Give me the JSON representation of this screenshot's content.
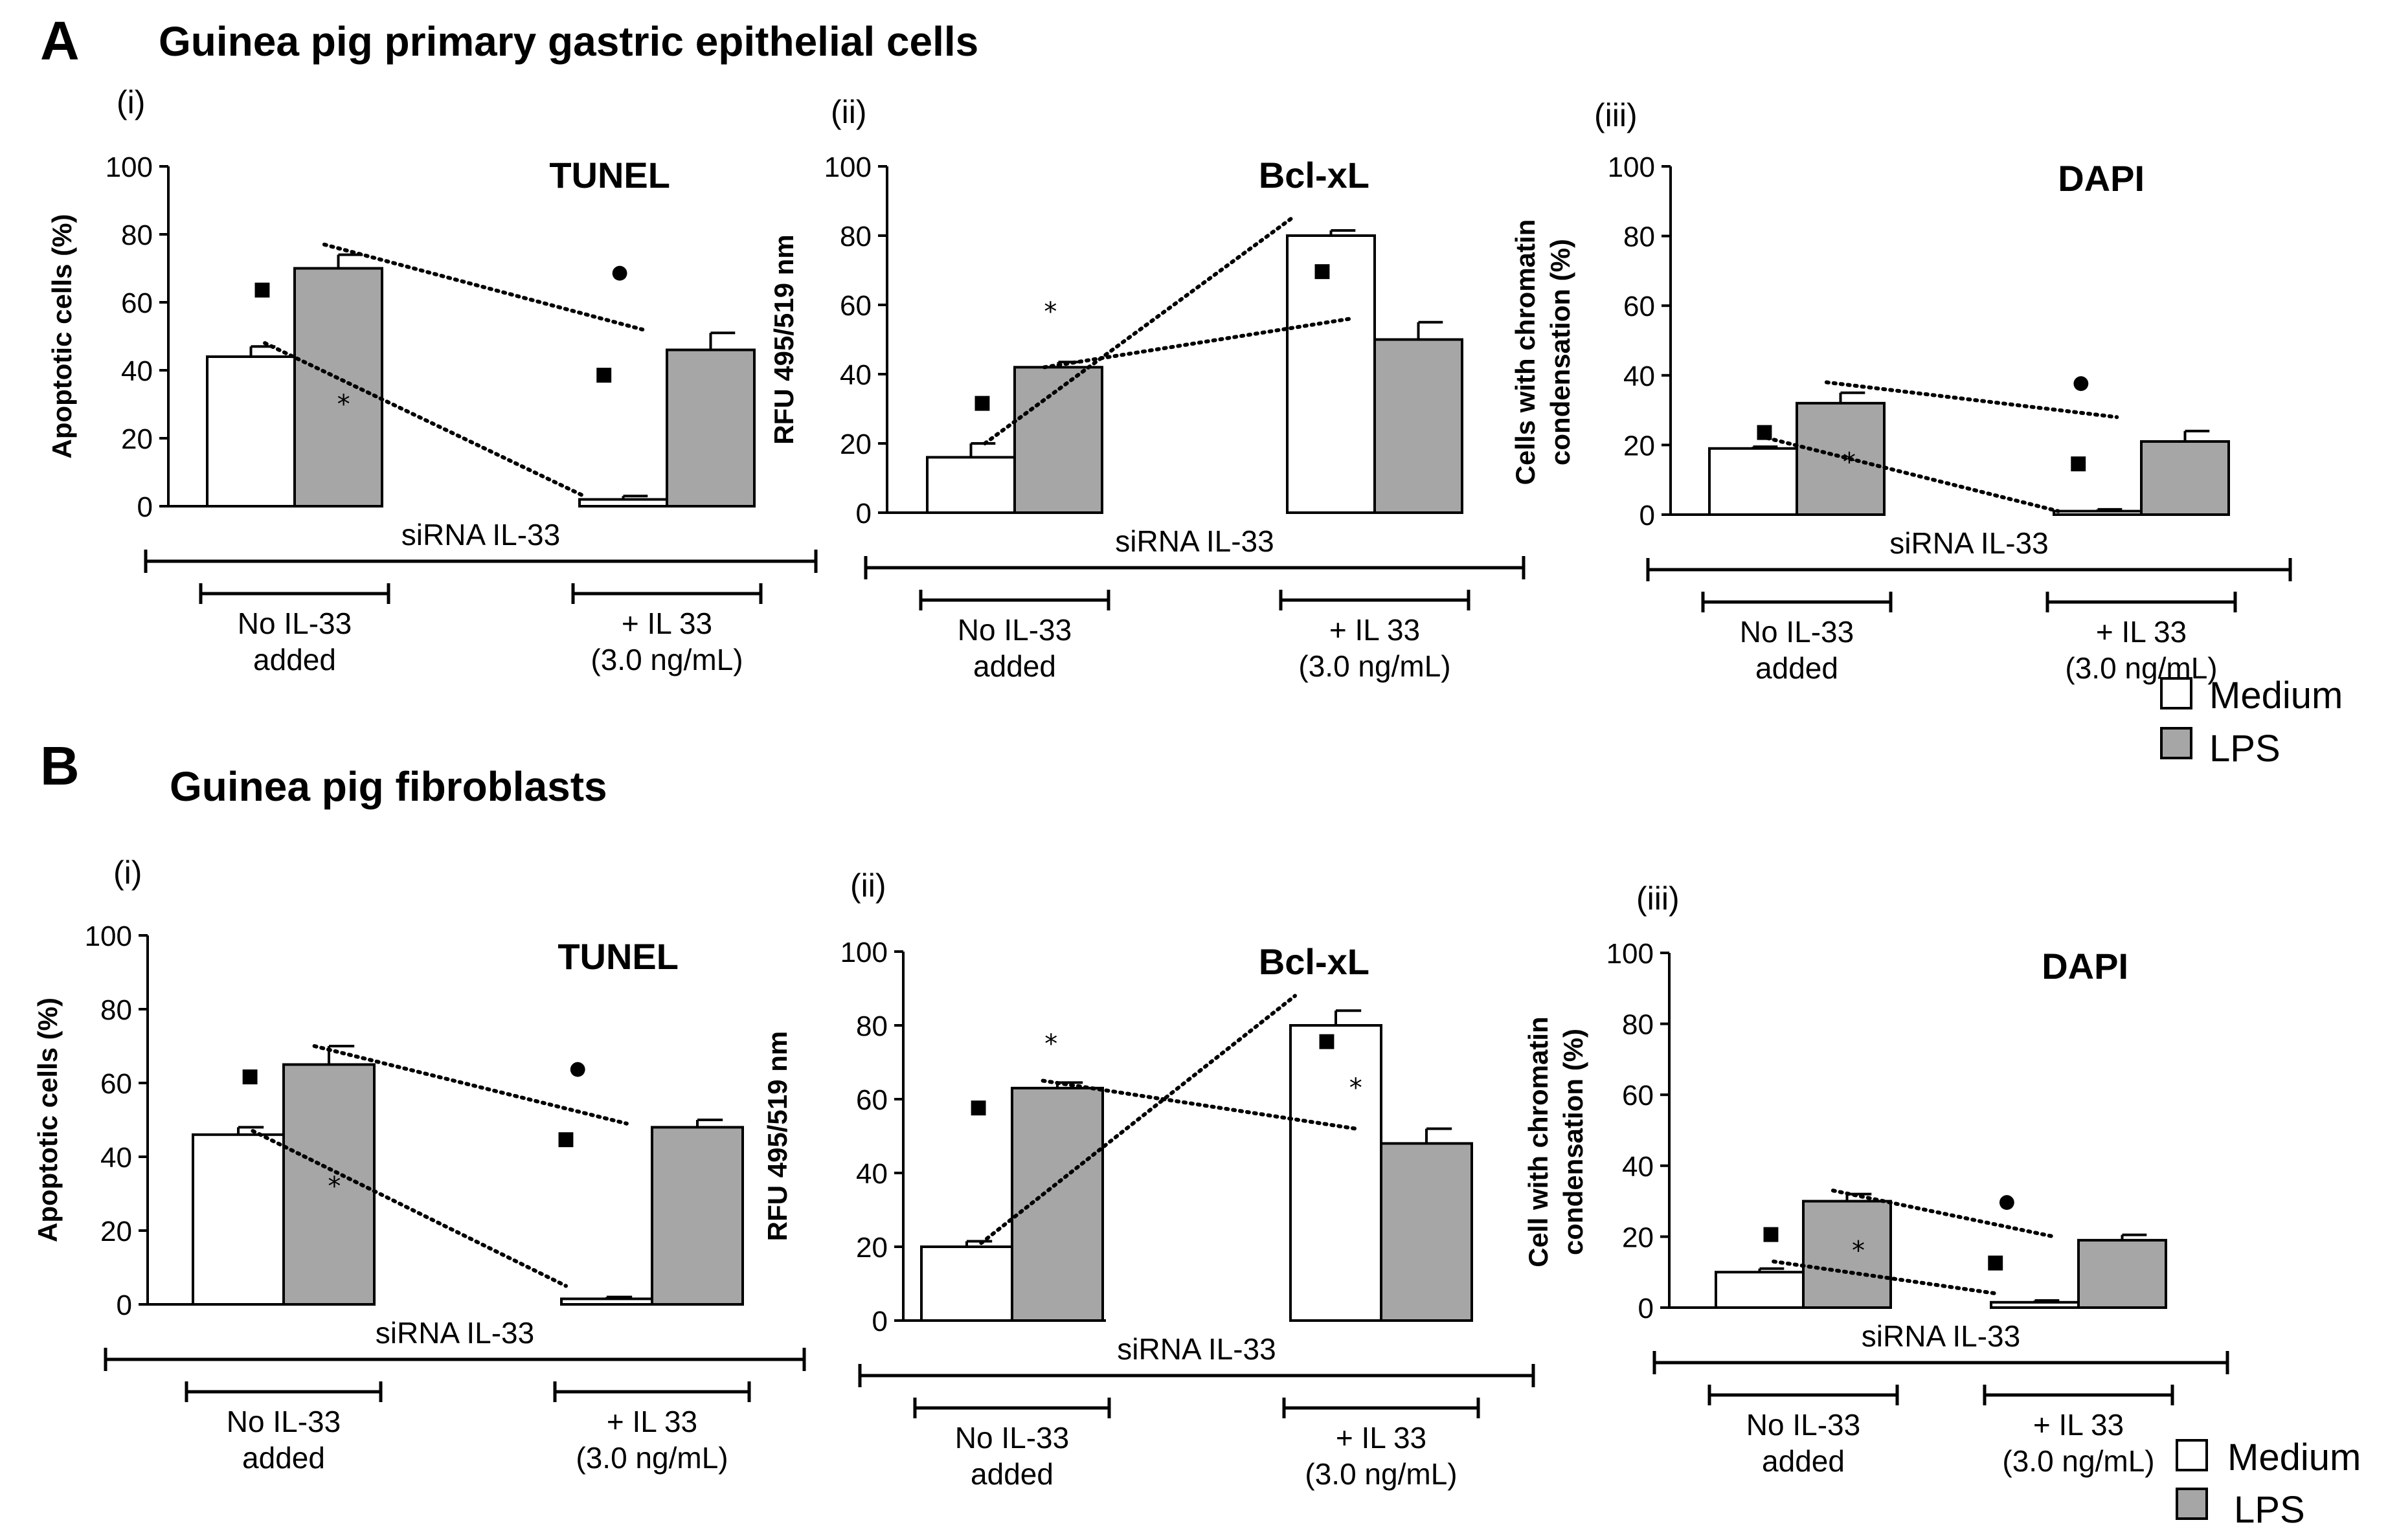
{
  "panels": [
    {
      "letter": "A",
      "title": "Guinea pig primary gastric epithelial cells",
      "legend": {
        "medium": "Medium",
        "lps": "LPS"
      }
    },
    {
      "letter": "B",
      "title": "Guinea pig fibroblasts",
      "legend": {
        "medium": "Medium",
        "lps": "LPS"
      }
    }
  ],
  "colors": {
    "medium": "#ffffff",
    "lps": "#a6a6a6",
    "axis": "#000000"
  },
  "chart_data": [
    {
      "id": "A-i",
      "panel": "A",
      "sublabel": "(i)",
      "title": "TUNEL",
      "type": "bar",
      "ylabel": [
        "Apoptotic cells (%)"
      ],
      "ylim": [
        0,
        100
      ],
      "yticks": [
        0,
        20,
        40,
        60,
        80,
        100
      ],
      "xlabel": "siRNA IL-33",
      "groups": [
        [
          "No IL-33",
          "added"
        ],
        [
          "+ IL 33",
          "(3.0 ng/mL)"
        ]
      ],
      "series": [
        {
          "name": "Medium",
          "values": [
            44,
            2
          ],
          "errors": [
            3,
            1
          ]
        },
        {
          "name": "LPS",
          "values": [
            70,
            46
          ],
          "errors": [
            4,
            5
          ]
        }
      ],
      "markers": [
        {
          "symbol": "■",
          "x": 0.63,
          "y": 64
        },
        {
          "symbol": "●",
          "x": 2.46,
          "y": 69
        },
        {
          "symbol": "*",
          "x": 1.56,
          "y": 30
        },
        {
          "symbol": "■",
          "x": 2.28,
          "y": 39
        }
      ],
      "trends": [
        [
          0.66,
          48,
          2.05,
          3
        ],
        [
          1.34,
          77,
          2.72,
          52
        ]
      ]
    },
    {
      "id": "A-ii",
      "panel": "A",
      "sublabel": "(ii)",
      "title": "Bcl-xL",
      "type": "bar",
      "ylabel": [
        "RFU 495/519 nm"
      ],
      "ylim": [
        0,
        100
      ],
      "yticks": [
        0,
        20,
        40,
        60,
        80,
        100
      ],
      "xlabel": "siRNA IL-33",
      "groups": [
        [
          "No IL-33",
          "added"
        ],
        [
          "+ IL 33",
          "(3.0 ng/mL)"
        ]
      ],
      "series": [
        {
          "name": "Medium",
          "values": [
            16,
            80
          ],
          "errors": [
            4,
            1.5
          ]
        },
        {
          "name": "LPS",
          "values": [
            42,
            50
          ],
          "errors": [
            1.5,
            5
          ]
        }
      ],
      "markers": [
        {
          "symbol": "■",
          "x": 0.63,
          "y": 32
        },
        {
          "symbol": "*",
          "x": 1.41,
          "y": 58
        },
        {
          "symbol": "■",
          "x": 2.4,
          "y": 70
        }
      ],
      "trends": [
        [
          0.66,
          20,
          2.05,
          85
        ],
        [
          1.34,
          42,
          2.72,
          56
        ]
      ]
    },
    {
      "id": "A-iii",
      "panel": "A",
      "sublabel": "(iii)",
      "title": "DAPI",
      "type": "bar",
      "ylabel": [
        "Cells with chromatin",
        "condensation (%)"
      ],
      "ylim": [
        0,
        100
      ],
      "yticks": [
        0,
        20,
        40,
        60,
        80,
        100
      ],
      "xlabel": "siRNA IL-33",
      "groups": [
        [
          "No IL-33",
          "added"
        ],
        [
          "+ IL 33",
          "(3.0 ng/mL)"
        ]
      ],
      "series": [
        {
          "name": "Medium",
          "values": [
            19,
            1
          ],
          "errors": [
            0.5,
            0.5
          ]
        },
        {
          "name": "LPS",
          "values": [
            32,
            21
          ],
          "errors": [
            3,
            3
          ]
        }
      ],
      "markers": [
        {
          "symbol": "■",
          "x": 0.63,
          "y": 24
        },
        {
          "symbol": "●",
          "x": 2.31,
          "y": 38
        },
        {
          "symbol": "*",
          "x": 1.6,
          "y": 15
        },
        {
          "symbol": "■",
          "x": 2.28,
          "y": 15
        }
      ],
      "trends": [
        [
          0.66,
          22,
          2.05,
          1
        ],
        [
          1.34,
          38,
          2.72,
          28
        ]
      ]
    },
    {
      "id": "B-i",
      "panel": "B",
      "sublabel": "(i)",
      "title": "TUNEL",
      "type": "bar",
      "ylabel": [
        "Apoptotic cells (%)"
      ],
      "ylim": [
        0,
        100
      ],
      "yticks": [
        0,
        20,
        40,
        60,
        80,
        100
      ],
      "xlabel": "siRNA IL-33",
      "groups": [
        [
          "No IL-33",
          "added"
        ],
        [
          "+ IL 33",
          "(3.0 ng/mL)"
        ]
      ],
      "series": [
        {
          "name": "Medium",
          "values": [
            46,
            1.5
          ],
          "errors": [
            2,
            0.5
          ]
        },
        {
          "name": "LPS",
          "values": [
            65,
            48
          ],
          "errors": [
            5,
            2
          ]
        }
      ],
      "markers": [
        {
          "symbol": "■",
          "x": 0.63,
          "y": 62
        },
        {
          "symbol": "●",
          "x": 2.18,
          "y": 64
        },
        {
          "symbol": "*",
          "x": 1.56,
          "y": 32
        },
        {
          "symbol": "■",
          "x": 2.05,
          "y": 45
        }
      ],
      "trends": [
        [
          0.66,
          47,
          2.05,
          5
        ],
        [
          1.34,
          70,
          2.72,
          49
        ]
      ]
    },
    {
      "id": "B-ii",
      "panel": "B",
      "sublabel": "(ii)",
      "title": "Bcl-xL",
      "type": "bar",
      "ylabel": [
        "RFU 495/519 nm"
      ],
      "ylim": [
        0,
        100
      ],
      "yticks": [
        0,
        20,
        40,
        60,
        80,
        100
      ],
      "xlabel": "siRNA IL-33",
      "groups": [
        [
          "No IL-33",
          "added"
        ],
        [
          "+ IL 33",
          "(3.0 ng/mL)"
        ]
      ],
      "series": [
        {
          "name": "Medium",
          "values": [
            20,
            80
          ],
          "errors": [
            1.5,
            4
          ]
        },
        {
          "name": "LPS",
          "values": [
            63,
            48
          ],
          "errors": [
            1.5,
            4
          ]
        }
      ],
      "markers": [
        {
          "symbol": "■",
          "x": 0.63,
          "y": 58
        },
        {
          "symbol": "*",
          "x": 1.43,
          "y": 75
        },
        {
          "symbol": "■",
          "x": 2.4,
          "y": 76
        },
        {
          "symbol": "*",
          "x": 2.72,
          "y": 63
        }
      ],
      "trends": [
        [
          0.66,
          21,
          2.05,
          88
        ],
        [
          1.34,
          65,
          2.72,
          52
        ]
      ]
    },
    {
      "id": "B-iii",
      "panel": "B",
      "sublabel": "(iii)",
      "title": "DAPI",
      "type": "bar",
      "ylabel": [
        "Cell with chromatin",
        "condensation (%)"
      ],
      "ylim": [
        0,
        100
      ],
      "yticks": [
        0,
        20,
        40,
        60,
        80,
        100
      ],
      "xlabel": "siRNA IL-33",
      "groups": [
        [
          "No IL-33",
          "added"
        ],
        [
          "+ IL 33",
          "(3.0 ng/mL)"
        ]
      ],
      "series": [
        {
          "name": "Medium",
          "values": [
            10,
            1.5
          ],
          "errors": [
            1,
            0.5
          ]
        },
        {
          "name": "LPS",
          "values": [
            30,
            19
          ],
          "errors": [
            2,
            1.5
          ]
        }
      ],
      "markers": [
        {
          "symbol": "■",
          "x": 0.63,
          "y": 21
        },
        {
          "symbol": "●",
          "x": 2.18,
          "y": 30
        },
        {
          "symbol": "*",
          "x": 1.63,
          "y": 16
        },
        {
          "symbol": "■",
          "x": 2.05,
          "y": 13
        }
      ],
      "trends": [
        [
          0.66,
          13,
          2.05,
          4
        ],
        [
          1.34,
          33,
          2.72,
          20
        ]
      ]
    }
  ]
}
